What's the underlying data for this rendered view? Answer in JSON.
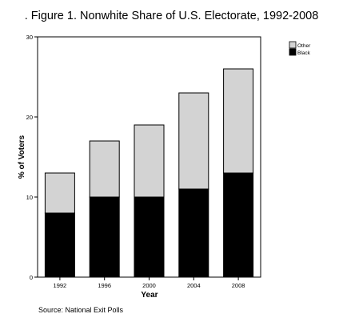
{
  "title": ". Figure 1. Nonwhite Share of U.S. Electorate, 1992-2008",
  "source": "Source: National Exit Polls",
  "chart_data": {
    "type": "bar",
    "stacked": true,
    "categories": [
      "1992",
      "1996",
      "2000",
      "2004",
      "2008"
    ],
    "series": [
      {
        "name": "Black",
        "values": [
          8,
          10,
          10,
          11,
          13
        ],
        "color": "#000000"
      },
      {
        "name": "Other",
        "values": [
          5,
          7,
          9,
          12,
          13
        ],
        "color": "#d3d3d3"
      }
    ],
    "xlabel": "Year",
    "ylabel": "% of Voters",
    "ylim": [
      0,
      30
    ],
    "yticks": [
      0,
      10,
      20,
      30
    ],
    "legend_entries": [
      "Other",
      "Black"
    ],
    "legend_position": "top-right",
    "grid": false
  }
}
